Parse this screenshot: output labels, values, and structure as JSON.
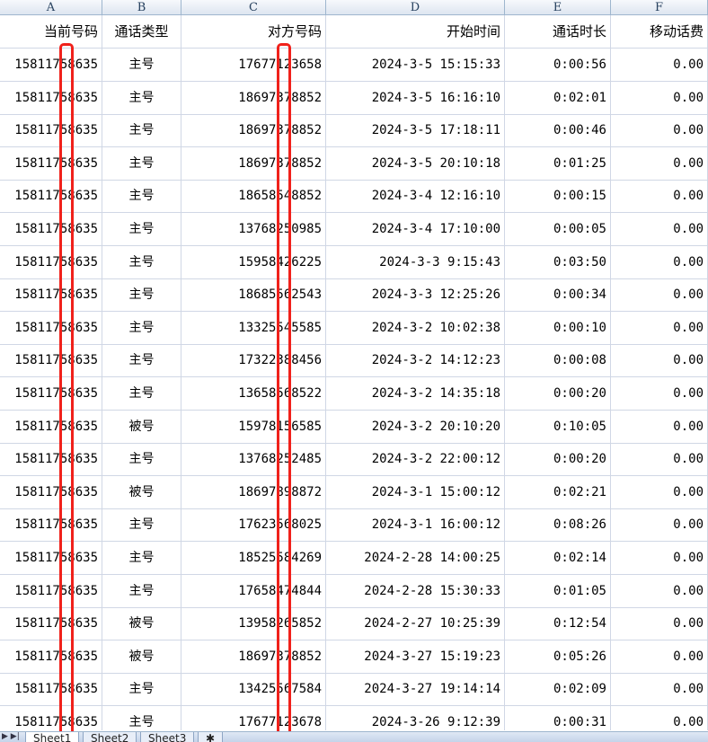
{
  "columns": [
    "A",
    "B",
    "C",
    "D",
    "E",
    "F"
  ],
  "headers": [
    "当前号码",
    "通话类型",
    "对方号码",
    "开始时间",
    "通话时长",
    "移动话费"
  ],
  "rows": [
    [
      "15811758635",
      "主号",
      "17677123658",
      "2024-3-5 15:15:33",
      "0:00:56",
      "0.00"
    ],
    [
      "15811758635",
      "主号",
      "18697378852",
      "2024-3-5 16:16:10",
      "0:02:01",
      "0.00"
    ],
    [
      "15811758635",
      "主号",
      "18697378852",
      "2024-3-5 17:18:11",
      "0:00:46",
      "0.00"
    ],
    [
      "15811758635",
      "主号",
      "18697378852",
      "2024-3-5 20:10:18",
      "0:01:25",
      "0.00"
    ],
    [
      "15811758635",
      "主号",
      "18658548852",
      "2024-3-4 12:16:10",
      "0:00:15",
      "0.00"
    ],
    [
      "15811758635",
      "主号",
      "13768250985",
      "2024-3-4 17:10:00",
      "0:00:05",
      "0.00"
    ],
    [
      "15811758635",
      "主号",
      "15958426225",
      "2024-3-3 9:15:43",
      "0:03:50",
      "0.00"
    ],
    [
      "15811758635",
      "主号",
      "18685562543",
      "2024-3-3 12:25:26",
      "0:00:34",
      "0.00"
    ],
    [
      "15811758635",
      "主号",
      "13325545585",
      "2024-3-2 10:02:38",
      "0:00:10",
      "0.00"
    ],
    [
      "15811758635",
      "主号",
      "17322388456",
      "2024-3-2 14:12:23",
      "0:00:08",
      "0.00"
    ],
    [
      "15811758635",
      "主号",
      "13658568522",
      "2024-3-2 14:35:18",
      "0:00:20",
      "0.00"
    ],
    [
      "15811758635",
      "被号",
      "15978156585",
      "2024-3-2 20:10:20",
      "0:10:05",
      "0.00"
    ],
    [
      "15811758635",
      "主号",
      "13768252485",
      "2024-3-2 22:00:12",
      "0:00:20",
      "0.00"
    ],
    [
      "15811758635",
      "被号",
      "18697898872",
      "2024-3-1 15:00:12",
      "0:02:21",
      "0.00"
    ],
    [
      "15811758635",
      "主号",
      "17623568025",
      "2024-3-1 16:00:12",
      "0:08:26",
      "0.00"
    ],
    [
      "15811758635",
      "主号",
      "18525584269",
      "2024-2-28 14:00:25",
      "0:02:14",
      "0.00"
    ],
    [
      "15811758635",
      "主号",
      "17658474844",
      "2024-2-28 15:30:33",
      "0:01:05",
      "0.00"
    ],
    [
      "15811758635",
      "被号",
      "13958265852",
      "2024-2-27 10:25:39",
      "0:12:54",
      "0.00"
    ],
    [
      "15811758635",
      "被号",
      "18697378852",
      "2024-3-27 15:19:23",
      "0:05:26",
      "0.00"
    ],
    [
      "15811758635",
      "主号",
      "13425567584",
      "2024-3-27 19:14:14",
      "0:02:09",
      "0.00"
    ],
    [
      "15811758635",
      "主号",
      "17677123678",
      "2024-3-26 9:12:39",
      "0:00:31",
      "0.00"
    ]
  ],
  "sheet_tabs": [
    "Sheet1",
    "Sheet2",
    "Sheet3"
  ],
  "active_tab": "Sheet1",
  "highlight_color": "#f0211b"
}
